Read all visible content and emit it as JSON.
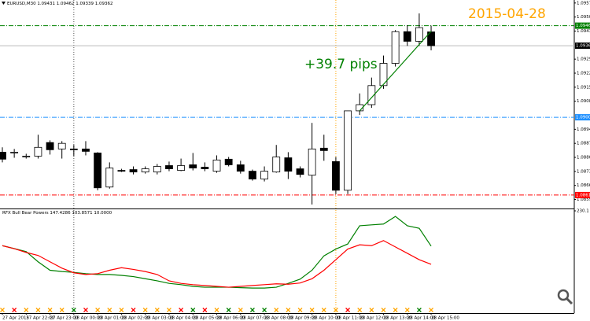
{
  "chart_data": {
    "type": "candlestick",
    "title": "EURUSD,M30 1.09431 1.09462 1.09339 1.09362",
    "x": [
      "27 Apr 2015",
      null,
      "27 Apr 22:00",
      null,
      "27 Apr 23:00",
      null,
      "28 Apr 00:00",
      null,
      "28 Apr 01:00",
      null,
      "28 Apr 02:00",
      null,
      "28 Apr 03:00",
      null,
      "28 Apr 04:00",
      null,
      "28 Apr 05:00",
      null,
      "28 Apr 06:00",
      null,
      "28 Apr 07:00",
      null,
      "28 Apr 08:00",
      null,
      "28 Apr 09:00",
      null,
      "28 Apr 10:00",
      null,
      "28 Apr 11:00",
      null,
      "28 Apr 12:00",
      null,
      "28 Apr 13:00",
      null,
      "28 Apr 14:00",
      null,
      "28 Apr 15:00"
    ],
    "open": [
      1.08831,
      1.08827,
      1.08807,
      1.08811,
      1.08879,
      1.08847,
      1.08847,
      1.08847,
      1.08827,
      1.08657,
      1.0874,
      1.08744,
      1.08732,
      1.08732,
      1.08764,
      1.0874,
      1.08768,
      1.08756,
      1.08736,
      1.08796,
      1.08768,
      1.08736,
      1.08697,
      1.08732,
      1.08803,
      1.08748,
      1.08716,
      1.08851,
      1.08784,
      1.08641,
      1.09037,
      1.09068,
      1.09163,
      1.09274,
      1.09432,
      1.09384,
      1.09431
    ],
    "high": [
      1.08855,
      1.08847,
      1.08823,
      1.08918,
      1.0889,
      1.08886,
      1.08867,
      1.08886,
      1.08831,
      1.0878,
      1.08748,
      1.0876,
      1.0876,
      1.08772,
      1.08784,
      1.08799,
      1.08827,
      1.0878,
      1.08815,
      1.08807,
      1.08788,
      1.08744,
      1.0876,
      1.08867,
      1.08831,
      1.0876,
      1.08977,
      1.08918,
      1.08807,
      1.09037,
      1.09124,
      1.09203,
      1.09313,
      1.0944,
      1.09464,
      1.09523,
      1.09462
    ],
    "low": [
      1.0878,
      1.08803,
      1.08799,
      1.08799,
      1.08819,
      1.08799,
      1.08811,
      1.08815,
      1.08641,
      1.08649,
      1.08732,
      1.0872,
      1.08724,
      1.0872,
      1.08736,
      1.08736,
      1.0874,
      1.08736,
      1.08728,
      1.0876,
      1.08724,
      1.08689,
      1.08685,
      1.08728,
      1.08697,
      1.08705,
      1.0857,
      1.08788,
      1.08622,
      1.08622,
      1.09017,
      1.09052,
      1.09147,
      1.09258,
      1.09361,
      1.09361,
      1.09339
    ],
    "close": [
      1.08796,
      1.08831,
      1.08811,
      1.08855,
      1.08843,
      1.08875,
      1.08843,
      1.08835,
      1.08653,
      1.08752,
      1.08736,
      1.08732,
      1.08748,
      1.0876,
      1.08748,
      1.08764,
      1.08752,
      1.08748,
      1.08792,
      1.08768,
      1.08736,
      1.08697,
      1.08736,
      1.08807,
      1.08736,
      1.0872,
      1.08847,
      1.08839,
      1.08641,
      1.09037,
      1.09068,
      1.09163,
      1.09274,
      1.09432,
      1.09384,
      1.09452,
      1.09362
    ],
    "ylim": [
      1.0855,
      1.0959
    ],
    "yticks": [
      1.09575,
      1.09505,
      1.09435,
      1.09295,
      1.09225,
      1.09155,
      1.09085,
      1.08945,
      1.08875,
      1.08805,
      1.08735,
      1.08665,
      1.08595
    ],
    "levels": [
      {
        "value": 1.09462,
        "color": "#008000",
        "style": "dashdot"
      },
      {
        "value": 1.09362,
        "color": "#000000",
        "style": "solid"
      },
      {
        "value": 1.09005,
        "color": "#1e90ff",
        "style": "dashdot"
      },
      {
        "value": 1.08617,
        "color": "#ff0000",
        "style": "dashdot"
      }
    ],
    "annotations": [
      {
        "text": "2015-04-28",
        "color": "#ffa500"
      },
      {
        "text": "+39.7 pips",
        "color": "#008000"
      }
    ],
    "trendline": {
      "start": 1.09037,
      "end": 1.09434,
      "color": "#008000"
    },
    "indicator": {
      "type": "line",
      "title": "RFX Bull Bear Powers 147.4286 103.8571 10.0000",
      "ylim": [
        0,
        230.1
      ],
      "yticks": [
        230.1
      ],
      "series": [
        {
          "color": "#008000",
          "values": [
            148,
            141,
            134,
            110,
            90,
            87,
            85,
            82,
            80,
            80,
            78,
            75,
            70,
            65,
            59,
            56,
            52,
            50,
            50,
            50,
            49,
            48,
            48,
            50,
            59,
            69,
            90,
            124,
            140,
            152,
            195,
            197,
            199,
            217,
            195,
            189,
            147
          ]
        },
        {
          "color": "#ff0000",
          "values": [
            148,
            141,
            132,
            125,
            110,
            95,
            84,
            80,
            82,
            90,
            96,
            92,
            87,
            80,
            65,
            59,
            56,
            54,
            52,
            50,
            52,
            54,
            56,
            58,
            57,
            60,
            70,
            90,
            115,
            140,
            150,
            148,
            160,
            145,
            130,
            115,
            104
          ]
        }
      ],
      "signal_colors": [
        "#ffa500",
        "#ff0000",
        "#ffa500",
        "#ffa500",
        "#ffa500",
        "#ffa500",
        "#008000",
        "#ff0000",
        "#ffa500",
        "#ffa500",
        "#ffa500",
        "#ff0000",
        "#ffa500",
        "#ffa500",
        "#ffa500",
        "#ff0000",
        "#008000",
        "#ff0000",
        "#ffa500",
        "#008000",
        "#ffa500",
        "#008000",
        "#008000",
        "#ffa500",
        "#ffa500",
        "#ffa500",
        "#ffa500",
        "#ffa500",
        "#ffa500",
        "#ff0000",
        "#ffa500",
        "#ffa500",
        "#ffa500",
        "#ffa500",
        "#ffa500",
        "#008000",
        "#ffa500"
      ]
    }
  }
}
